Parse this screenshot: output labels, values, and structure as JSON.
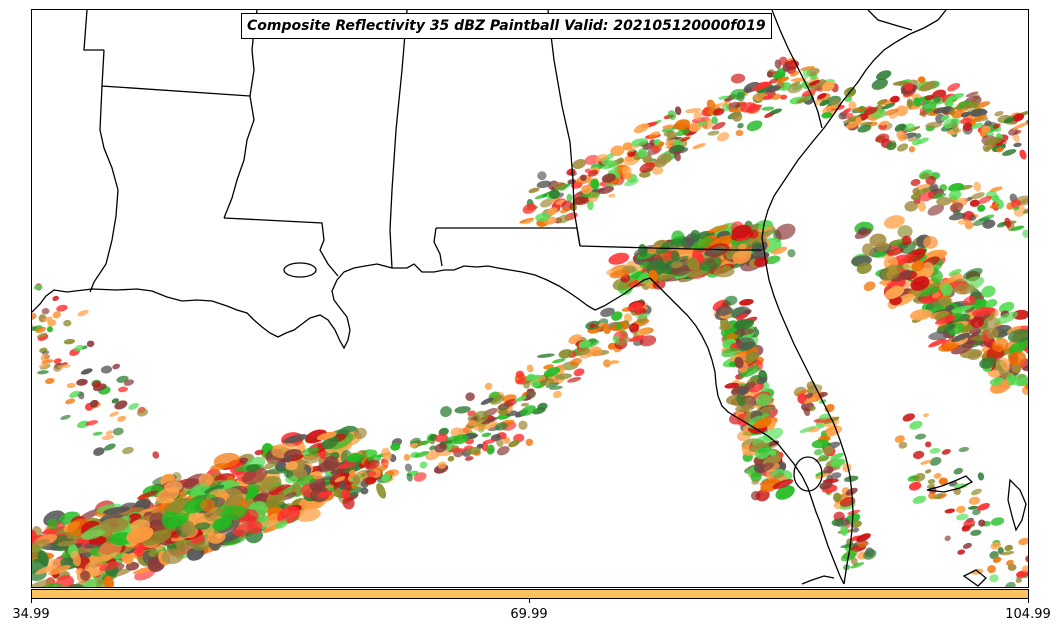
{
  "title": "Composite Reflectivity 35 dBZ Paintball Valid: 202105120000f019",
  "colorbar": {
    "color": "#fec35f",
    "tick_labels": [
      "34.99",
      "69.99",
      "104.99"
    ]
  },
  "map": {
    "region": "U.S. Gulf Coast and Florida",
    "land_color": "#ffffff",
    "water_color": "#ffffff",
    "boundary_color": "#000000"
  },
  "paintball_palette": [
    "#ff3030",
    "#cc1111",
    "#f07000",
    "#ff9a40",
    "#22bb22",
    "#55dd55",
    "#2e7d32",
    "#8b8b2a",
    "#a08a3a",
    "#8b3a3a",
    "#555555",
    "#ffa64d"
  ]
}
